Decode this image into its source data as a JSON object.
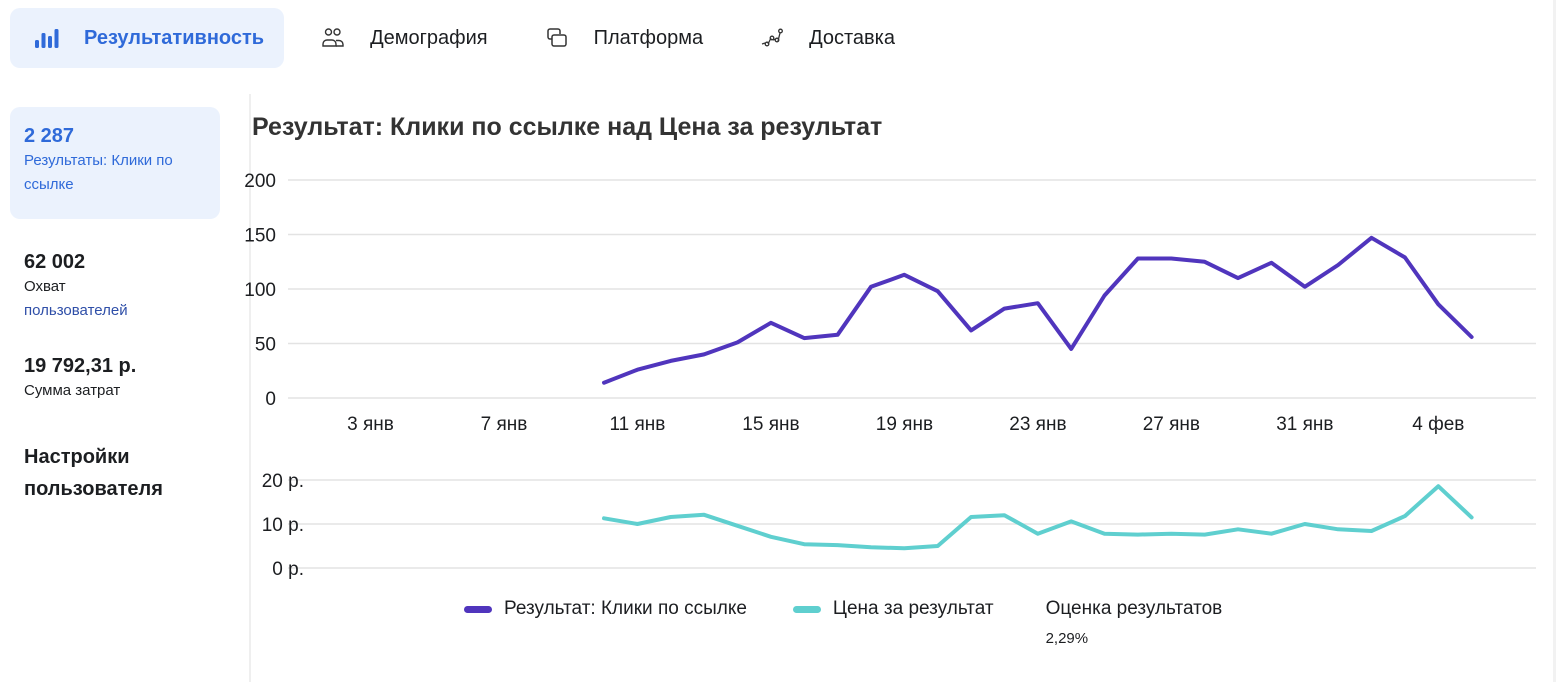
{
  "tabs": [
    {
      "label": "Результативность",
      "icon": "bar-chart-icon",
      "active": true
    },
    {
      "label": "Демография",
      "icon": "people-icon",
      "active": false
    },
    {
      "label": "Платформа",
      "icon": "overlapping-squares-icon",
      "active": false
    },
    {
      "label": "Доставка",
      "icon": "route-icon",
      "active": false
    }
  ],
  "sidebar": {
    "metrics": [
      {
        "value": "2 287",
        "label": "Результаты: Клики по ссылке",
        "active": true
      },
      {
        "value": "62 002",
        "label_line1": "Охват",
        "label_link": "пользователей",
        "active": false
      },
      {
        "value": "19 792,31 р.",
        "label": "Сумма затрат",
        "active": false
      }
    ],
    "settings_label": "Настройки пользователя"
  },
  "chart": {
    "title": "Результат: Клики по ссылке над Цена за результат"
  },
  "legend": {
    "series1": "Результат: Клики по ссылке",
    "series2": "Цена за результат",
    "score_label": "Оценка результатов",
    "score_value": "2,29%"
  },
  "colors": {
    "accent": "#2f6ad9",
    "accent_bg": "#ebf2fd",
    "series1": "#5035bd",
    "series2": "#5fcfcf",
    "grid": "#e3e3e3"
  },
  "chart_data": [
    {
      "type": "line",
      "title": "Результат: Клики по ссылке над Цена за результат",
      "series_name": "Результат: Клики по ссылке",
      "xlabel": "",
      "ylabel": "",
      "ylim": [
        0,
        200
      ],
      "yticks": [
        "0",
        "50",
        "100",
        "150",
        "200"
      ],
      "xticks": [
        "3 янв",
        "7 янв",
        "11 янв",
        "15 янв",
        "19 янв",
        "23 янв",
        "27 янв",
        "31 янв",
        "4 фев"
      ],
      "x": [
        "10 янв",
        "11 янв",
        "12 янв",
        "13 янв",
        "14 янв",
        "15 янв",
        "16 янв",
        "17 янв",
        "18 янв",
        "19 янв",
        "20 янв",
        "21 янв",
        "22 янв",
        "23 янв",
        "24 янв",
        "25 янв",
        "26 янв",
        "27 янв",
        "28 янв",
        "29 янв",
        "30 янв",
        "31 янв",
        "1 фев",
        "2 фев",
        "3 фев",
        "4 фев",
        "5 фев"
      ],
      "values": [
        14,
        26,
        34,
        40,
        51,
        69,
        55,
        58,
        102,
        113,
        98,
        62,
        82,
        87,
        45,
        94,
        128,
        128,
        125,
        110,
        124,
        102,
        122,
        147,
        129,
        86,
        56
      ],
      "grid": true
    },
    {
      "type": "line",
      "series_name": "Цена за результат",
      "ylim": [
        0,
        20
      ],
      "yticks": [
        "0 р.",
        "10 р.",
        "20 р."
      ],
      "x": [
        "10 янв",
        "11 янв",
        "12 янв",
        "13 янв",
        "14 янв",
        "15 янв",
        "16 янв",
        "17 янв",
        "18 янв",
        "19 янв",
        "20 янв",
        "21 янв",
        "22 янв",
        "23 янв",
        "24 янв",
        "25 янв",
        "26 янв",
        "27 янв",
        "28 янв",
        "29 янв",
        "30 янв",
        "31 янв",
        "1 фев",
        "2 фев",
        "3 фев",
        "4 фев",
        "5 фев"
      ],
      "values": [
        11.3,
        10.0,
        11.6,
        12.1,
        9.6,
        7.1,
        5.4,
        5.2,
        4.7,
        4.5,
        5.0,
        11.6,
        12.0,
        7.8,
        10.6,
        7.8,
        7.6,
        7.8,
        7.6,
        8.8,
        7.8,
        10.0,
        8.8,
        8.4,
        11.8,
        18.6,
        11.5
      ],
      "grid": true
    }
  ]
}
